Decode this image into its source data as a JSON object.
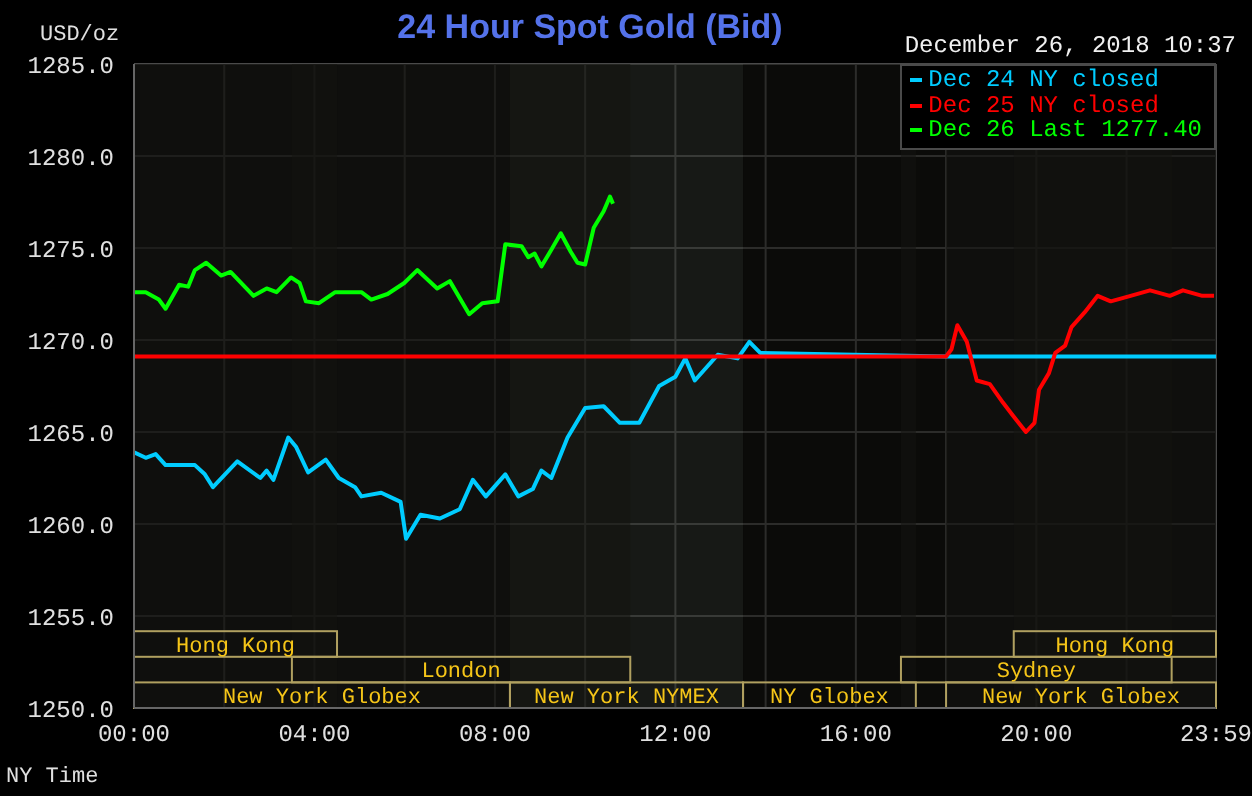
{
  "chart_data": {
    "type": "line",
    "title": "24 Hour Spot Gold (Bid)",
    "subtitle": "December 26, 2018 10:37",
    "ylabel": "USD/oz",
    "xlabel": "NY Time",
    "xlim": [
      0,
      23.983
    ],
    "xticks": [
      {
        "value": 0,
        "label": "00:00"
      },
      {
        "value": 2,
        "label": null
      },
      {
        "value": 4,
        "label": "04:00"
      },
      {
        "value": 6,
        "label": null
      },
      {
        "value": 8,
        "label": "08:00"
      },
      {
        "value": 10,
        "label": null
      },
      {
        "value": 12,
        "label": "12:00"
      },
      {
        "value": 14,
        "label": null
      },
      {
        "value": 16,
        "label": "16:00"
      },
      {
        "value": 18,
        "label": null
      },
      {
        "value": 20,
        "label": "20:00"
      },
      {
        "value": 22,
        "label": null
      },
      {
        "value": 23.983,
        "label": "23:59"
      }
    ],
    "ylim": [
      1250,
      1285
    ],
    "yticks": [
      {
        "value": 1250,
        "label": "1250.0"
      },
      {
        "value": 1255,
        "label": "1255.0"
      },
      {
        "value": 1260,
        "label": "1260.0"
      },
      {
        "value": 1265,
        "label": "1265.0"
      },
      {
        "value": 1270,
        "label": "1270.0"
      },
      {
        "value": 1275,
        "label": "1275.0"
      },
      {
        "value": 1280,
        "label": "1280.0"
      },
      {
        "value": 1285,
        "label": "1285.0"
      }
    ],
    "grid": true,
    "legend": "top right",
    "series": [
      {
        "name": "Dec 24 NY closed",
        "color": "#00ccff",
        "x": [
          0,
          0.26,
          0.48,
          0.7,
          1.0,
          1.35,
          1.57,
          1.75,
          2.29,
          2.8,
          2.94,
          3.09,
          3.42,
          3.59,
          3.86,
          4.25,
          4.54,
          4.9,
          5.04,
          5.48,
          5.91,
          6.03,
          6.35,
          6.78,
          7.22,
          7.51,
          7.8,
          8.23,
          8.52,
          8.84,
          9.03,
          9.25,
          9.61,
          10.0,
          10.41,
          10.77,
          11.2,
          11.64,
          12.0,
          12.22,
          12.43,
          12.94,
          13.38,
          13.64,
          13.88,
          18.0,
          23.983
        ],
        "values": [
          1263.9,
          1263.6,
          1263.8,
          1263.2,
          1263.2,
          1263.2,
          1262.7,
          1262.0,
          1263.4,
          1262.5,
          1262.9,
          1262.4,
          1264.7,
          1264.2,
          1262.8,
          1263.5,
          1262.5,
          1262.0,
          1261.5,
          1261.7,
          1261.2,
          1259.2,
          1260.5,
          1260.3,
          1260.8,
          1262.4,
          1261.5,
          1262.7,
          1261.5,
          1261.9,
          1262.9,
          1262.5,
          1264.7,
          1266.3,
          1266.4,
          1265.5,
          1265.5,
          1267.5,
          1268.0,
          1269.0,
          1267.8,
          1269.2,
          1269.0,
          1269.9,
          1269.3,
          1269.1,
          1269.1
        ]
      },
      {
        "name": "Dec 25 NY closed",
        "color": "#ff0000",
        "x": [
          0,
          18.0,
          18.12,
          18.25,
          18.46,
          18.68,
          18.97,
          19.26,
          19.48,
          19.77,
          19.96,
          20.06,
          20.28,
          20.42,
          20.64,
          20.78,
          21.07,
          21.36,
          21.65,
          22.09,
          22.52,
          22.96,
          23.25,
          23.68,
          23.94
        ],
        "values": [
          1269.1,
          1269.1,
          1269.5,
          1270.8,
          1269.9,
          1267.8,
          1267.6,
          1266.6,
          1265.9,
          1265.0,
          1265.5,
          1267.3,
          1268.2,
          1269.3,
          1269.7,
          1270.7,
          1271.5,
          1272.4,
          1272.1,
          1272.4,
          1272.7,
          1272.4,
          1272.7,
          1272.4,
          1272.4
        ]
      },
      {
        "name": "Dec 26 Last 1277.40",
        "color": "#00ff00",
        "x": [
          0,
          0.26,
          0.55,
          0.7,
          1.0,
          1.2,
          1.35,
          1.6,
          1.93,
          2.14,
          2.65,
          2.94,
          3.16,
          3.48,
          3.67,
          3.81,
          4.1,
          4.46,
          4.75,
          5.04,
          5.26,
          5.62,
          5.99,
          6.28,
          6.72,
          7.0,
          7.43,
          7.72,
          8.06,
          8.23,
          8.59,
          8.74,
          8.88,
          9.03,
          9.25,
          9.46,
          9.68,
          9.83,
          10.0,
          10.19,
          10.41,
          10.55,
          10.617
        ],
        "values": [
          1272.6,
          1272.6,
          1272.2,
          1271.7,
          1273.0,
          1272.9,
          1273.8,
          1274.2,
          1273.5,
          1273.7,
          1272.4,
          1272.8,
          1272.6,
          1273.4,
          1273.1,
          1272.1,
          1272.0,
          1272.6,
          1272.6,
          1272.6,
          1272.2,
          1272.5,
          1273.1,
          1273.8,
          1272.8,
          1273.2,
          1271.4,
          1272.0,
          1272.1,
          1275.2,
          1275.1,
          1274.5,
          1274.7,
          1274.0,
          1274.9,
          1275.8,
          1274.8,
          1274.2,
          1274.1,
          1276.1,
          1277.0,
          1277.8,
          1277.4
        ]
      }
    ],
    "bands": [
      {
        "axis": "x",
        "from": 0,
        "to": 8.333,
        "label": "New York Globex",
        "color": "#141410"
      },
      {
        "axis": "x",
        "from": 8.333,
        "to": 13.5,
        "label": "New York NYMEX",
        "color": "#2a2e28"
      },
      {
        "axis": "x",
        "from": 13.5,
        "to": 17.33,
        "label": "NY Globex",
        "color": "#141410"
      },
      {
        "axis": "x",
        "from": 18.0,
        "to": 23.983,
        "label": "New York Globex",
        "color": "#141410"
      },
      {
        "axis": "x",
        "from": 3.5,
        "to": 11.0,
        "label": "London",
        "color": "#141410"
      },
      {
        "axis": "x",
        "from": 17.0,
        "to": 23.0,
        "label": "Sydney",
        "color": "#141410"
      },
      {
        "axis": "x",
        "from": 0,
        "to": 4.5,
        "label": "Hong Kong",
        "color": "#141410"
      },
      {
        "axis": "x",
        "from": 19.5,
        "to": 23.983,
        "label": "Hong Kong",
        "color": "#141410"
      }
    ]
  }
}
